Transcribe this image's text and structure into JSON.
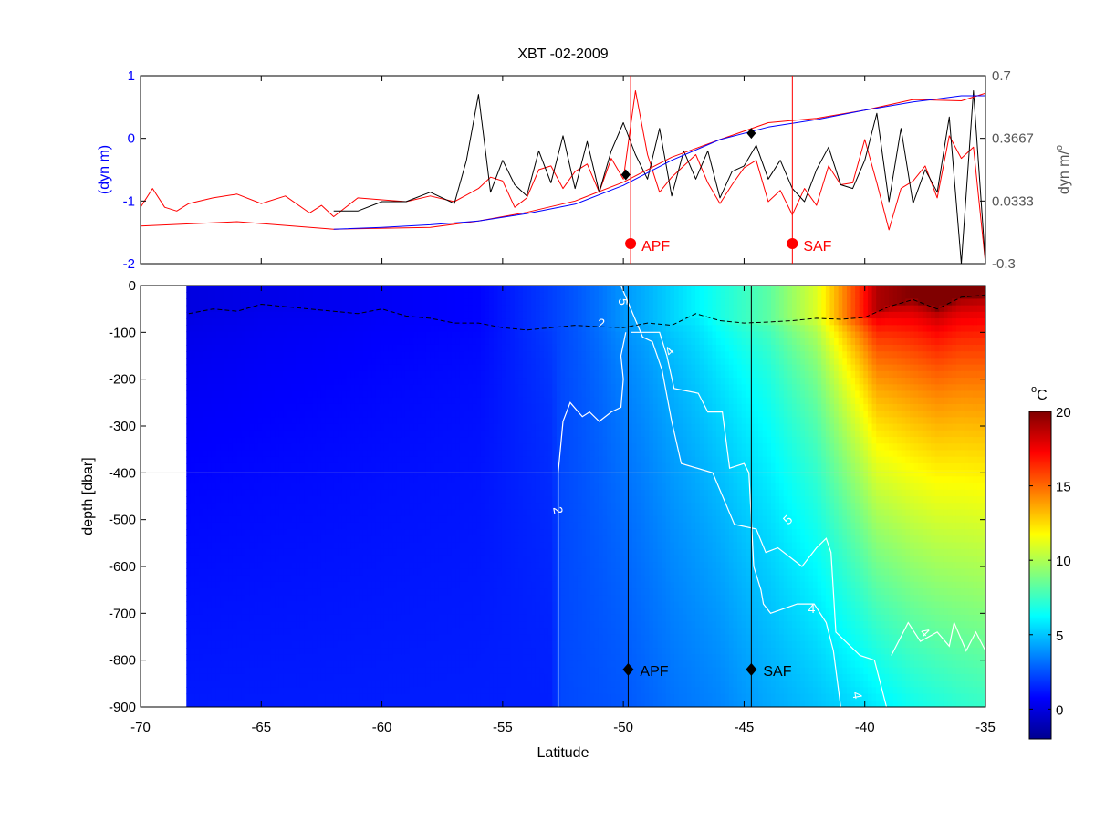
{
  "title": "XBT -02-2009",
  "x_axis": {
    "label": "Latitude",
    "range": [
      -70,
      -35
    ],
    "ticks": [
      -70,
      -65,
      -60,
      -55,
      -50,
      -45,
      -40,
      -35
    ],
    "tick_labels": [
      "-70",
      "-65",
      "-60",
      "-55",
      "-50",
      "-45",
      "-40",
      "-35"
    ]
  },
  "chart_data": [
    {
      "type": "line",
      "panel": "top",
      "xlim": [
        -70,
        -35
      ],
      "left_axis": {
        "label": "(dyn m)",
        "color": "#0000ff",
        "range": [
          -2,
          1
        ],
        "ticks": [
          -2,
          -1,
          0,
          1
        ],
        "tick_labels": [
          "-2",
          "-1",
          "0",
          "1"
        ]
      },
      "right_axis": {
        "label": "dyn m/°",
        "label_base": "dyn m/",
        "label_sup": "o",
        "color": "#555555",
        "range": [
          -0.3,
          0.7
        ],
        "ticks": [
          -0.3,
          0.0333,
          0.3667,
          0.7
        ],
        "tick_labels": [
          "-0.3",
          "0.0333",
          "0.3667",
          "0.7"
        ]
      },
      "series": [
        {
          "axis": "left",
          "color": "#0000ff",
          "x": [
            -62,
            -60,
            -58,
            -56,
            -54,
            -52,
            -50,
            -48,
            -46,
            -44,
            -42,
            -40,
            -38,
            -36,
            -35
          ],
          "y": [
            -1.45,
            -1.42,
            -1.38,
            -1.32,
            -1.2,
            -1.05,
            -0.75,
            -0.35,
            -0.02,
            0.18,
            0.3,
            0.45,
            0.58,
            0.68,
            0.68
          ]
        },
        {
          "axis": "left",
          "color": "#ff0000",
          "x": [
            -70,
            -66,
            -62,
            -58,
            -56,
            -54,
            -52,
            -50,
            -48,
            -46,
            -44,
            -42,
            -40,
            -38,
            -36,
            -35
          ],
          "y": [
            -1.4,
            -1.33,
            -1.45,
            -1.42,
            -1.32,
            -1.18,
            -1.0,
            -0.7,
            -0.3,
            -0.02,
            0.25,
            0.32,
            0.45,
            0.62,
            0.6,
            0.72
          ]
        },
        {
          "axis": "right",
          "color": "#ff0000",
          "x": [
            -70,
            -69.5,
            -69,
            -68.5,
            -68,
            -67,
            -66,
            -65,
            -64,
            -63,
            -62.5,
            -62,
            -61,
            -60,
            -59,
            -58,
            -57,
            -56,
            -55.5,
            -55,
            -54.5,
            -54,
            -53.5,
            -53,
            -52.5,
            -52,
            -51.5,
            -51,
            -50.5,
            -50,
            -49.5,
            -49,
            -48.5,
            -48,
            -47.5,
            -47,
            -46.5,
            -46,
            -45.5,
            -45,
            -44.5,
            -44,
            -43.5,
            -43,
            -42.5,
            -42,
            -41.5,
            -41,
            -40.5,
            -40,
            -39.5,
            -39,
            -38.5,
            -38,
            -37.5,
            -37,
            -36.5,
            -36,
            -35.5,
            -35
          ],
          "y": [
            0.0,
            0.1,
            0.0,
            -0.02,
            0.02,
            0.05,
            0.07,
            0.02,
            0.06,
            -0.03,
            0.01,
            -0.05,
            0.05,
            0.04,
            0.03,
            0.06,
            0.03,
            0.1,
            0.16,
            0.14,
            0.0,
            0.05,
            0.2,
            0.22,
            0.1,
            0.19,
            0.23,
            0.08,
            0.26,
            0.15,
            0.62,
            0.28,
            0.08,
            0.16,
            0.22,
            0.28,
            0.13,
            0.02,
            0.12,
            0.21,
            0.25,
            0.03,
            0.09,
            -0.04,
            0.1,
            0.01,
            0.22,
            0.12,
            0.13,
            0.36,
            0.13,
            -0.12,
            0.1,
            0.14,
            0.22,
            0.05,
            0.38,
            0.26,
            0.32,
            -0.3
          ]
        },
        {
          "axis": "right",
          "color": "#000000",
          "x": [
            -62,
            -61,
            -60,
            -59,
            -58,
            -57,
            -56.5,
            -56,
            -55.5,
            -55,
            -54.5,
            -54,
            -53.5,
            -53,
            -52.5,
            -52,
            -51.5,
            -51,
            -50.5,
            -50,
            -49.5,
            -49,
            -48.5,
            -48,
            -47.5,
            -47,
            -46.5,
            -46,
            -45.5,
            -45,
            -44.5,
            -44,
            -43.5,
            -43,
            -42.5,
            -42,
            -41.5,
            -41,
            -40.5,
            -40,
            -39.5,
            -39,
            -38.5,
            -38,
            -37.5,
            -37,
            -36.5,
            -36,
            -35.5,
            -35
          ],
          "y": [
            -0.02,
            -0.02,
            0.03,
            0.03,
            0.08,
            0.02,
            0.25,
            0.6,
            0.08,
            0.25,
            0.12,
            0.06,
            0.3,
            0.13,
            0.38,
            0.1,
            0.35,
            0.08,
            0.3,
            0.45,
            0.28,
            0.15,
            0.42,
            0.06,
            0.3,
            0.15,
            0.3,
            0.05,
            0.19,
            0.22,
            0.33,
            0.15,
            0.25,
            0.1,
            0.03,
            0.2,
            0.32,
            0.12,
            0.1,
            0.25,
            0.5,
            0.03,
            0.42,
            0.02,
            0.2,
            0.08,
            0.48,
            -0.3,
            0.62,
            -0.3
          ]
        }
      ],
      "diamonds": [
        {
          "x": -49.9,
          "y": -0.58,
          "axis": "left",
          "color": "#000000"
        },
        {
          "x": -44.7,
          "y": 0.08,
          "axis": "left",
          "color": "#000000"
        }
      ],
      "front_lines": [
        {
          "label": "APF",
          "x": -49.7,
          "color": "#ff0000"
        },
        {
          "label": "SAF",
          "x": -43.0,
          "color": "#ff0000"
        }
      ]
    },
    {
      "type": "heatmap",
      "panel": "bottom",
      "variable": "temperature",
      "xlim": [
        -70,
        -35
      ],
      "ylim": [
        -900,
        0
      ],
      "data_start_lat": -68.1,
      "y_axis": {
        "label": "depth [dbar]",
        "ticks": [
          0,
          -100,
          -200,
          -300,
          -400,
          -500,
          -600,
          -700,
          -800,
          -900
        ],
        "tick_labels": [
          "0",
          "-100",
          "-200",
          "-300",
          "-400",
          "-500",
          "-600",
          "-700",
          "-800",
          "-900"
        ]
      },
      "reference_line_depth": -400,
      "colorbar": {
        "label": "°C",
        "label_sup": "o",
        "label_base": "C",
        "range": [
          -2,
          20
        ],
        "ticks": [
          0,
          5,
          10,
          15,
          20
        ],
        "tick_labels": [
          "0",
          "5",
          "10",
          "15",
          "20"
        ]
      },
      "surface_profile": {
        "lat": [
          -68,
          -62,
          -56,
          -53,
          -52,
          -51,
          -50,
          -49,
          -48,
          -46,
          -44,
          -42,
          -41,
          -40,
          -39.5,
          -38,
          -36,
          -35
        ],
        "temp": [
          0.0,
          0.4,
          0.8,
          2.1,
          2.6,
          3.2,
          4.0,
          4.6,
          5.3,
          6.8,
          8.2,
          11.0,
          14.0,
          17.0,
          19.0,
          20.0,
          20.0,
          20.0
        ]
      },
      "deep_profile": {
        "lat": [
          -68,
          -53,
          -52.6,
          -50,
          -48,
          -46,
          -44.2,
          -42,
          -40,
          -38,
          -36,
          -35
        ],
        "temp": [
          1.3,
          1.4,
          2.3,
          2.6,
          3.2,
          3.6,
          4.3,
          4.9,
          5.6,
          6.6,
          7.2,
          7.4
        ]
      },
      "contours": [
        {
          "level": "2",
          "lat": [
            -52.7,
            -52.7,
            -52.5,
            -52.2,
            -51.7,
            -51.4,
            -51.0,
            -50.5,
            -50.1,
            -50.0,
            -50.1,
            -49.9
          ],
          "depth": [
            -900,
            -400,
            -290,
            -250,
            -280,
            -270,
            -290,
            -270,
            -260,
            -200,
            -150,
            -100
          ]
        },
        {
          "level": "4",
          "lat": [
            -49.7,
            -48.5,
            -48.2,
            -47.9,
            -46.9,
            -46.5,
            -45.9,
            -45.6,
            -45.0,
            -44.8,
            -44.6,
            -44.3,
            -44.2,
            -43.9,
            -42.8,
            -42.1,
            -41.6,
            -41.3,
            -41.0
          ],
          "depth": [
            -100,
            -100,
            -150,
            -220,
            -230,
            -270,
            -270,
            -390,
            -380,
            -400,
            -600,
            -650,
            -680,
            -700,
            -680,
            -680,
            -720,
            -780,
            -900
          ]
        },
        {
          "level": "5",
          "lat": [
            -50.1,
            -49.2,
            -48.8,
            -48.4,
            -48.0,
            -47.6,
            -46.3,
            -45.4,
            -44.5,
            -44.1,
            -43.6,
            -42.6,
            -42.0,
            -41.6,
            -41.4,
            -41.2,
            -40.2,
            -39.6,
            -39.1
          ],
          "depth": [
            0,
            -110,
            -120,
            -180,
            -290,
            -380,
            -400,
            -510,
            -520,
            -570,
            -560,
            -600,
            -560,
            -540,
            -570,
            -740,
            -790,
            -800,
            -900
          ]
        },
        {
          "level": "4",
          "lat": [
            -38.9,
            -38.2,
            -37.7,
            -37.0,
            -36.5,
            -36.3,
            -35.8,
            -35.4,
            -35.0
          ],
          "depth": [
            -790,
            -720,
            -760,
            -740,
            -770,
            -720,
            -780,
            -740,
            -780
          ]
        }
      ],
      "contour_labels": [
        {
          "text": "5",
          "lat": -50.0,
          "depth": -35,
          "color": "#ffffff",
          "rotate": 90
        },
        {
          "text": "2",
          "lat": -50.9,
          "depth": -80,
          "color": "#ffffff",
          "rotate": 0
        },
        {
          "text": "4",
          "lat": -48.1,
          "depth": -140,
          "color": "#ffffff",
          "rotate": -45
        },
        {
          "text": "2",
          "lat": -52.7,
          "depth": -480,
          "color": "#ffffff",
          "rotate": 80
        },
        {
          "text": "5",
          "lat": -43.2,
          "depth": -500,
          "color": "#ffffff",
          "rotate": -45
        },
        {
          "text": "4",
          "lat": -42.2,
          "depth": -690,
          "color": "#ffffff",
          "rotate": 0
        },
        {
          "text": "4",
          "lat": -37.5,
          "depth": -740,
          "color": "#ffffff",
          "rotate": 45
        },
        {
          "text": "4",
          "lat": -40.3,
          "depth": -875,
          "color": "#ffffff",
          "rotate": 80
        }
      ],
      "mixed_layer_line": {
        "lat": [
          -68,
          -67,
          -66,
          -65,
          -64,
          -63,
          -62,
          -61,
          -60,
          -59,
          -58,
          -57,
          -56,
          -55,
          -54,
          -53,
          -52,
          -51,
          -50,
          -49,
          -48,
          -47,
          -46,
          -45,
          -44,
          -43,
          -42,
          -41,
          -40,
          -39,
          -38,
          -37,
          -36,
          -35
        ],
        "depth": [
          -60,
          -50,
          -55,
          -40,
          -45,
          -50,
          -55,
          -60,
          -50,
          -65,
          -70,
          -80,
          -80,
          -90,
          -95,
          -90,
          -85,
          -88,
          -90,
          -80,
          -85,
          -60,
          -75,
          -80,
          -78,
          -75,
          -70,
          -72,
          -68,
          -45,
          -30,
          -50,
          -25,
          -20
        ]
      },
      "front_lines": [
        {
          "label": "APF",
          "x": -49.8,
          "marker_depth": -820
        },
        {
          "label": "SAF",
          "x": -44.7,
          "marker_depth": -820
        }
      ]
    }
  ]
}
